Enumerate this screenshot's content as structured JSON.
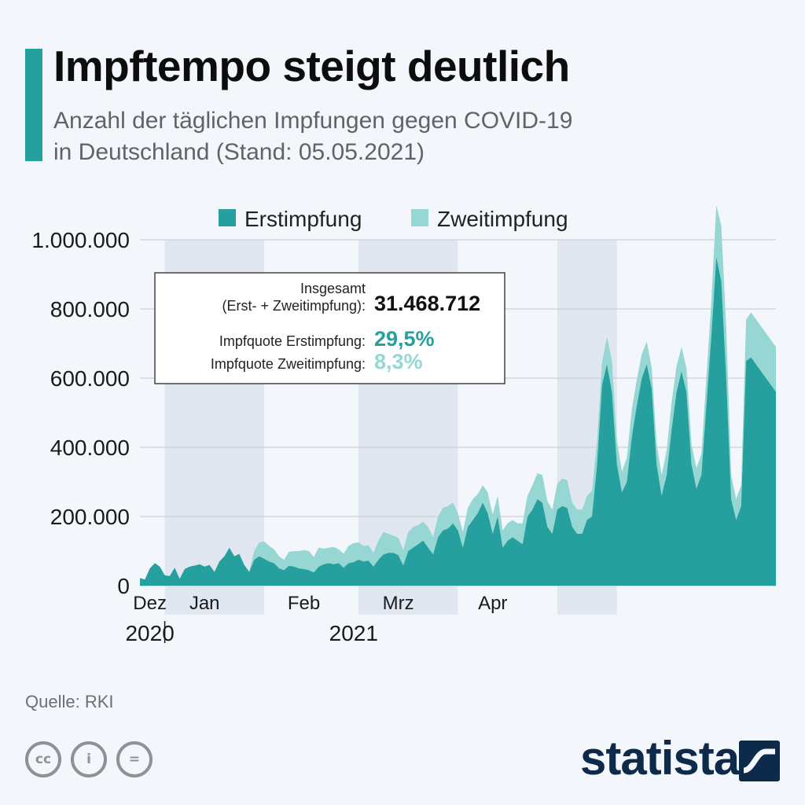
{
  "header": {
    "title": "Impftempo steigt deutlich",
    "subtitle_line1": "Anzahl der täglichen Impfungen gegen COVID-19",
    "subtitle_line2": "in Deutschland (Stand: 05.05.2021)"
  },
  "colors": {
    "accent": "#26a09e",
    "erst": "#26a09e",
    "zweit": "#96d7d3",
    "band": "#e1e7f1",
    "background": "#f3f6fa",
    "brand": "#0d2a4a"
  },
  "infobox": {
    "total_label_1": "Insgesamt",
    "total_label_2": "(Erst- + Zweitimpfung):",
    "total_value": "31.468.712",
    "erst_label": "Impfquote Erstimpfung:",
    "erst_value": "29,5%",
    "zweit_label": "Impfquote Zweitimpfung:",
    "zweit_value": "8,3%"
  },
  "chart_data": {
    "type": "area",
    "stacked": true,
    "title": "Impftempo steigt deutlich",
    "subtitle": "Anzahl der täglichen Impfungen gegen COVID-19 in Deutschland (Stand: 05.05.2021)",
    "xlabel": "",
    "ylabel": "",
    "ylim": [
      0,
      1000000
    ],
    "yticks": [
      {
        "value": 0,
        "label": "0"
      },
      {
        "value": 200000,
        "label": "200.000"
      },
      {
        "value": 400000,
        "label": "400.000"
      },
      {
        "value": 600000,
        "label": "600.000"
      },
      {
        "value": 800000,
        "label": "800.000"
      },
      {
        "value": 1000000,
        "label": "1.000.000"
      }
    ],
    "x_start": "2020-12-27",
    "x_end": "2021-05-04",
    "x_domain_days": [
      0,
      128
    ],
    "month_labels": [
      {
        "label": "Dez",
        "day": 2
      },
      {
        "label": "Jan",
        "day": 13
      },
      {
        "label": "Feb",
        "day": 33
      },
      {
        "label": "Mrz",
        "day": 52
      },
      {
        "label": "Apr",
        "day": 71
      }
    ],
    "year_labels": [
      {
        "label": "2020",
        "day": 2
      },
      {
        "label": "2021",
        "day": 43
      }
    ],
    "year_divider_day": 5,
    "shaded_bands_days": [
      [
        5,
        25
      ],
      [
        44,
        64
      ],
      [
        84,
        96
      ]
    ],
    "legend": [
      "Erstimpfung",
      "Zweitimpfung"
    ],
    "legend_position": "top-center",
    "source": "RKI",
    "series": [
      {
        "name": "Erstimpfung",
        "color": "#26a09e",
        "x": [
          0,
          1,
          2,
          3,
          4,
          5,
          6,
          7,
          8,
          9,
          10,
          11,
          12,
          13,
          14,
          15,
          16,
          17,
          18,
          19,
          20,
          21,
          22,
          23,
          24,
          25,
          26,
          27,
          28,
          29,
          30,
          31,
          32,
          33,
          34,
          35,
          36,
          37,
          38,
          39,
          40,
          41,
          42,
          43,
          44,
          45,
          46,
          47,
          48,
          49,
          50,
          51,
          52,
          53,
          54,
          55,
          56,
          57,
          58,
          59,
          60,
          61,
          62,
          63,
          64,
          65,
          66,
          67,
          68,
          69,
          70,
          71,
          72,
          73,
          74,
          75,
          76,
          77,
          78,
          79,
          80,
          81,
          82,
          83,
          84,
          85,
          86,
          87,
          88,
          89,
          90,
          91,
          92,
          93,
          94,
          95,
          96,
          97,
          98,
          99,
          100,
          101,
          102,
          103,
          104,
          105,
          106,
          107,
          108,
          109,
          110,
          111,
          112,
          113,
          114,
          115,
          116,
          117,
          118,
          119,
          120,
          121,
          122,
          123,
          124,
          125,
          126,
          127,
          128
        ],
        "values": [
          22000,
          18000,
          50000,
          65000,
          55000,
          30000,
          28000,
          52000,
          20000,
          48000,
          55000,
          58000,
          62000,
          55000,
          60000,
          40000,
          70000,
          85000,
          110000,
          85000,
          92000,
          60000,
          40000,
          75000,
          85000,
          78000,
          70000,
          65000,
          50000,
          45000,
          58000,
          55000,
          50000,
          48000,
          45000,
          38000,
          55000,
          62000,
          65000,
          62000,
          65000,
          52000,
          65000,
          68000,
          75000,
          70000,
          72000,
          55000,
          75000,
          90000,
          95000,
          95000,
          88000,
          58000,
          100000,
          110000,
          120000,
          130000,
          110000,
          90000,
          140000,
          160000,
          165000,
          180000,
          160000,
          110000,
          170000,
          190000,
          210000,
          240000,
          210000,
          150000,
          200000,
          110000,
          130000,
          140000,
          130000,
          120000,
          200000,
          220000,
          250000,
          240000,
          170000,
          150000,
          220000,
          230000,
          225000,
          170000,
          150000,
          150000,
          190000,
          200000,
          350000,
          580000,
          640000,
          560000,
          350000,
          270000,
          300000,
          430000,
          520000,
          600000,
          640000,
          570000,
          350000,
          260000,
          320000,
          450000,
          560000,
          620000,
          560000,
          350000,
          280000,
          320000,
          520000,
          720000,
          950000,
          880000,
          600000,
          250000,
          190000,
          230000,
          650000,
          660000,
          640000,
          620000,
          600000,
          580000,
          560000
        ]
      },
      {
        "name": "Zweitimpfung",
        "color": "#96d7d3",
        "x": [
          0,
          1,
          2,
          3,
          4,
          5,
          6,
          7,
          8,
          9,
          10,
          11,
          12,
          13,
          14,
          15,
          16,
          17,
          18,
          19,
          20,
          21,
          22,
          23,
          24,
          25,
          26,
          27,
          28,
          29,
          30,
          31,
          32,
          33,
          34,
          35,
          36,
          37,
          38,
          39,
          40,
          41,
          42,
          43,
          44,
          45,
          46,
          47,
          48,
          49,
          50,
          51,
          52,
          53,
          54,
          55,
          56,
          57,
          58,
          59,
          60,
          61,
          62,
          63,
          64,
          65,
          66,
          67,
          68,
          69,
          70,
          71,
          72,
          73,
          74,
          75,
          76,
          77,
          78,
          79,
          80,
          81,
          82,
          83,
          84,
          85,
          86,
          87,
          88,
          89,
          90,
          91,
          92,
          93,
          94,
          95,
          96,
          97,
          98,
          99,
          100,
          101,
          102,
          103,
          104,
          105,
          106,
          107,
          108,
          109,
          110,
          111,
          112,
          113,
          114,
          115,
          116,
          117,
          118,
          119,
          120,
          121,
          122,
          123,
          124,
          125,
          126,
          127,
          128
        ],
        "values": [
          0,
          0,
          0,
          0,
          0,
          0,
          0,
          0,
          0,
          0,
          0,
          0,
          0,
          0,
          0,
          0,
          0,
          0,
          0,
          0,
          0,
          0,
          0,
          25000,
          40000,
          50000,
          45000,
          40000,
          35000,
          30000,
          40000,
          45000,
          50000,
          55000,
          55000,
          45000,
          55000,
          45000,
          45000,
          50000,
          40000,
          40000,
          50000,
          55000,
          50000,
          45000,
          45000,
          40000,
          55000,
          65000,
          55000,
          50000,
          50000,
          45000,
          55000,
          60000,
          55000,
          55000,
          60000,
          50000,
          60000,
          65000,
          65000,
          60000,
          50000,
          45000,
          55000,
          60000,
          55000,
          50000,
          60000,
          55000,
          60000,
          50000,
          50000,
          50000,
          50000,
          60000,
          60000,
          70000,
          75000,
          80000,
          75000,
          70000,
          75000,
          80000,
          80000,
          70000,
          70000,
          70000,
          70000,
          75000,
          70000,
          65000,
          80000,
          90000,
          70000,
          60000,
          70000,
          80000,
          75000,
          70000,
          65000,
          60000,
          60000,
          60000,
          70000,
          80000,
          75000,
          70000,
          70000,
          60000,
          60000,
          60000,
          80000,
          100000,
          150000,
          160000,
          150000,
          70000,
          60000,
          60000,
          120000,
          130000,
          130000,
          130000,
          130000,
          130000,
          130000
        ]
      }
    ]
  },
  "footer": {
    "source": "Quelle: RKI",
    "brand": "statista",
    "cc_icons": [
      {
        "icon": "cc-icon",
        "glyph": "cc"
      },
      {
        "icon": "person-icon",
        "glyph": "i"
      },
      {
        "icon": "equals-icon",
        "glyph": "="
      }
    ]
  }
}
